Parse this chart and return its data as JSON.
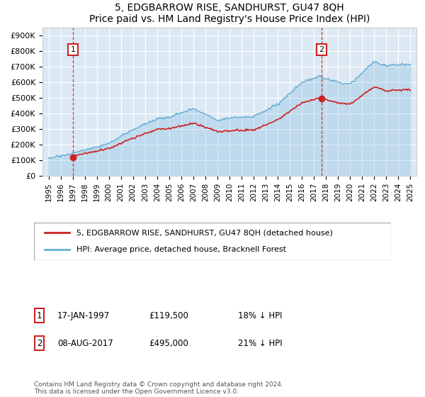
{
  "title": "5, EDGBARROW RISE, SANDHURST, GU47 8QH",
  "subtitle": "Price paid vs. HM Land Registry's House Price Index (HPI)",
  "ylim": [
    0,
    950000
  ],
  "yticks": [
    0,
    100000,
    200000,
    300000,
    400000,
    500000,
    600000,
    700000,
    800000,
    900000
  ],
  "ytick_labels": [
    "£0",
    "£100K",
    "£200K",
    "£300K",
    "£400K",
    "£500K",
    "£600K",
    "£700K",
    "£800K",
    "£900K"
  ],
  "xlim_start": 1994.5,
  "xlim_end": 2025.5,
  "xtick_years": [
    1995,
    1996,
    1997,
    1998,
    1999,
    2000,
    2001,
    2002,
    2003,
    2004,
    2005,
    2006,
    2007,
    2008,
    2009,
    2010,
    2011,
    2012,
    2013,
    2014,
    2015,
    2016,
    2017,
    2018,
    2019,
    2020,
    2021,
    2022,
    2023,
    2024,
    2025
  ],
  "hpi_color": "#6baed6",
  "price_color": "#cc2222",
  "annotation_color": "#cc2222",
  "background_color": "#dce9f5",
  "grid_color": "#ffffff",
  "marker1_date": 1997.04,
  "marker1_price": 119500,
  "marker1_label": "1",
  "marker1_text_date": "17-JAN-1997",
  "marker1_text_price": "£119,500",
  "marker1_text_hpi": "18% ↓ HPI",
  "marker2_date": 2017.62,
  "marker2_price": 495000,
  "marker2_label": "2",
  "marker2_text_date": "08-AUG-2017",
  "marker2_text_price": "£495,000",
  "marker2_text_hpi": "21% ↓ HPI",
  "legend_line1": "5, EDGBARROW RISE, SANDHURST, GU47 8QH (detached house)",
  "legend_line2": "HPI: Average price, detached house, Bracknell Forest",
  "footer": "Contains HM Land Registry data © Crown copyright and database right 2024.\nThis data is licensed under the Open Government Licence v3.0."
}
